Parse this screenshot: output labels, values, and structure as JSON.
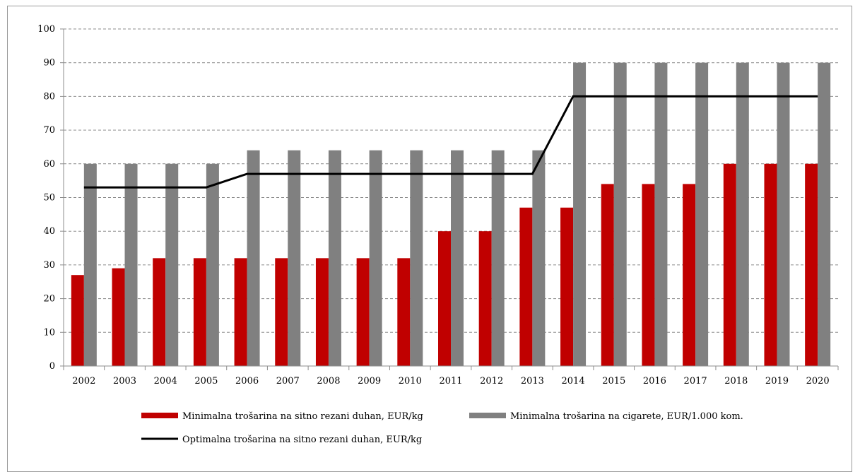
{
  "chart_data": {
    "type": "bar",
    "categories": [
      "2002",
      "2003",
      "2004",
      "2005",
      "2006",
      "2007",
      "2008",
      "2009",
      "2010",
      "2011",
      "2012",
      "2013",
      "2014",
      "2015",
      "2016",
      "2017",
      "2018",
      "2019",
      "2020"
    ],
    "series": [
      {
        "name": "Minimalna trošarina na sitno rezani duhan, EUR/kg",
        "type": "bar",
        "color": "#c00000",
        "values": [
          27,
          29,
          32,
          32,
          32,
          32,
          32,
          32,
          32,
          40,
          40,
          47,
          47,
          54,
          54,
          54,
          60,
          60,
          60
        ]
      },
      {
        "name": "Minimalna trošarina na cigarete, EUR/1.000 kom.",
        "type": "bar",
        "color": "#808080",
        "values": [
          60,
          60,
          60,
          60,
          64,
          64,
          64,
          64,
          64,
          64,
          64,
          64,
          90,
          90,
          90,
          90,
          90,
          90,
          90
        ]
      },
      {
        "name": "Optimalna trošarina na sitno rezani duhan, EUR/kg",
        "type": "line",
        "color": "#000000",
        "values": [
          53,
          53,
          53,
          53,
          57,
          57,
          57,
          57,
          57,
          57,
          57,
          57,
          80,
          80,
          80,
          80,
          80,
          80,
          80
        ]
      }
    ],
    "yticks": [
      "0",
      "10",
      "20",
      "30",
      "40",
      "50",
      "60",
      "70",
      "80",
      "90",
      "100"
    ],
    "ylim": [
      0,
      100
    ],
    "grid": true,
    "legend_position": "bottom"
  }
}
